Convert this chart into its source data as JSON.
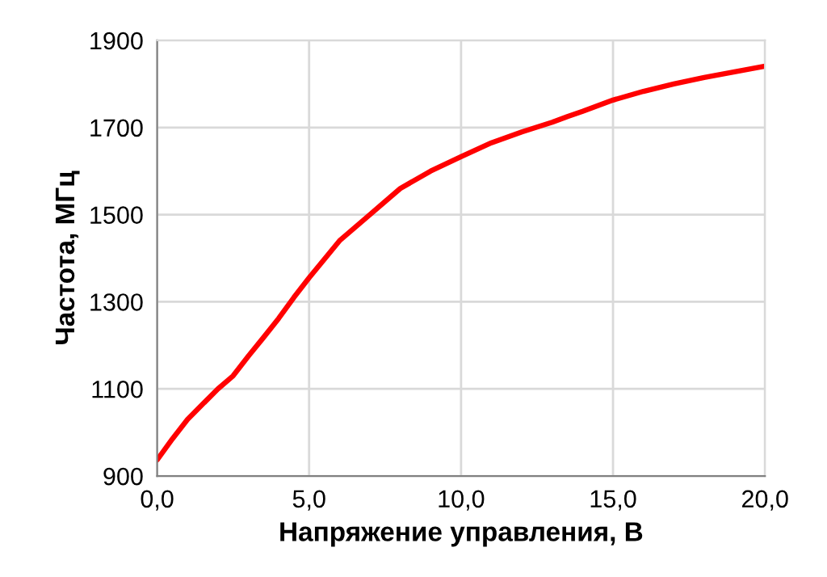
{
  "chart_data": {
    "type": "line",
    "xlabel": "Напряжение управления, В",
    "ylabel": "Частота, МГц",
    "x": [
      0,
      0.5,
      1,
      1.5,
      2,
      2.5,
      3,
      3.5,
      4,
      4.5,
      5,
      6,
      7,
      8,
      9,
      10,
      11,
      12,
      13,
      13.5,
      14,
      15,
      16,
      17,
      18,
      19,
      20
    ],
    "series": [
      {
        "color": "#ff0000",
        "values": [
          937,
          985,
          1030,
          1065,
          1100,
          1130,
          1175,
          1218,
          1262,
          1310,
          1355,
          1440,
          1500,
          1560,
          1600,
          1633,
          1665,
          1690,
          1712,
          1725,
          1737,
          1763,
          1783,
          1800,
          1815,
          1828,
          1841
        ]
      }
    ],
    "xlim": [
      0,
      20
    ],
    "xticks": [
      {
        "value": 0,
        "label": "0,0"
      },
      {
        "value": 5,
        "label": "5,0"
      },
      {
        "value": 10,
        "label": "10,0"
      },
      {
        "value": 15,
        "label": "15,0"
      },
      {
        "value": 20,
        "label": "20,0"
      }
    ],
    "ylim": [
      900,
      1900
    ],
    "yticks": [
      900,
      1100,
      1300,
      1500,
      1700,
      1900
    ],
    "grid": true,
    "marker": "none",
    "line_style": "solid"
  }
}
